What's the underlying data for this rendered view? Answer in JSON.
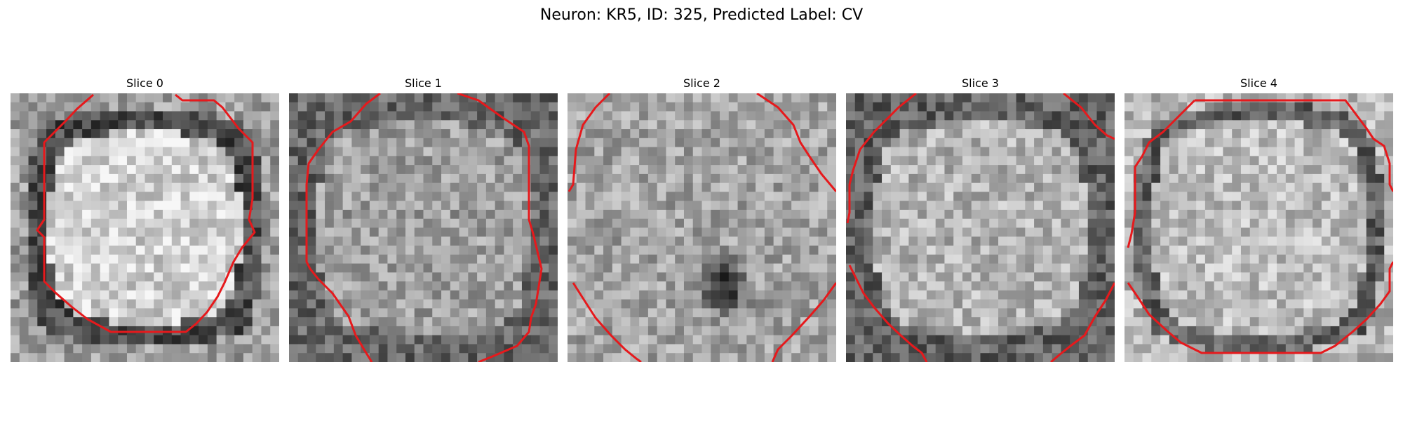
{
  "figure": {
    "title": "Neuron: KR5, ID: 325, Predicted Label: CV"
  },
  "colors": {
    "contour": "#e6191c"
  },
  "slices": [
    {
      "label": "Slice 0"
    },
    {
      "label": "Slice 1"
    },
    {
      "label": "Slice 2"
    },
    {
      "label": "Slice 3"
    },
    {
      "label": "Slice 4"
    }
  ]
}
